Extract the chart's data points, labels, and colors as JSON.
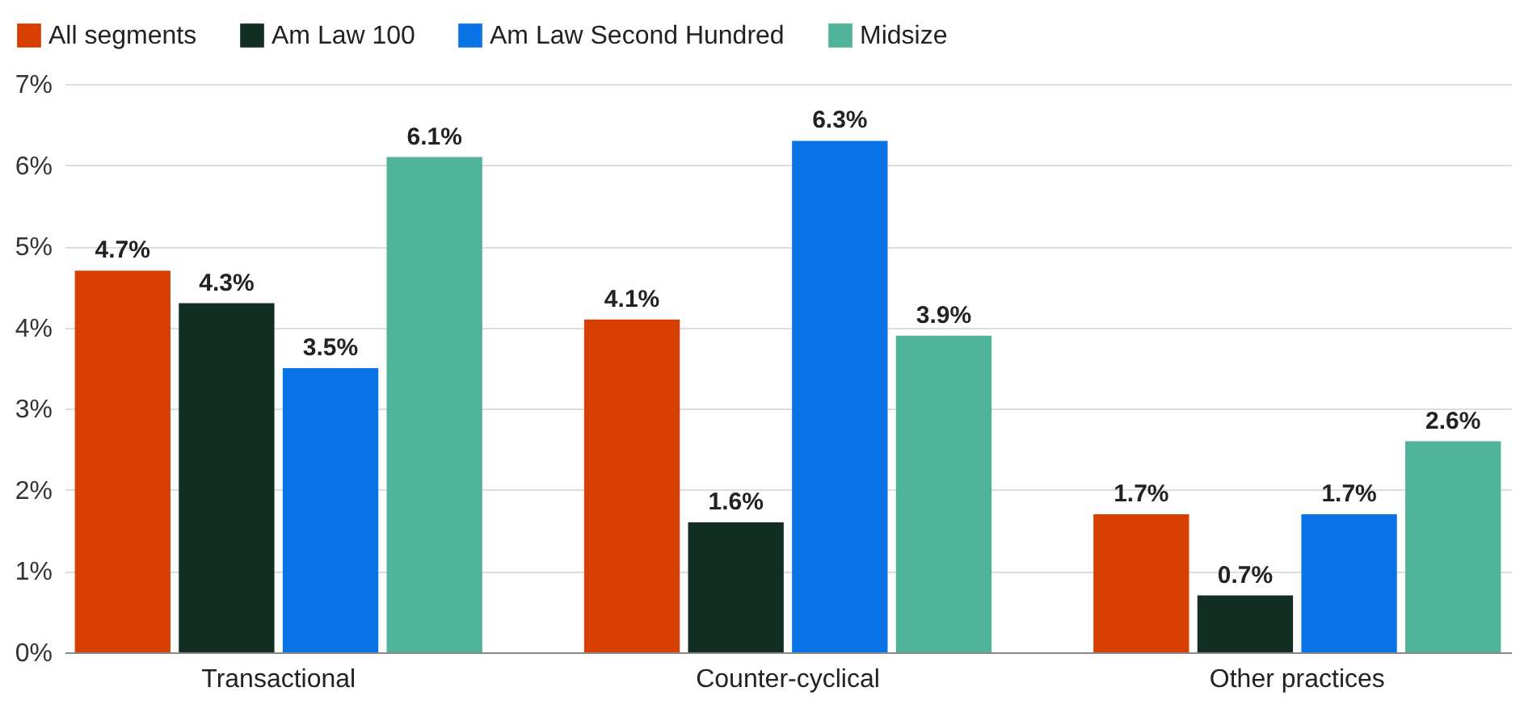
{
  "chart_data": {
    "type": "bar",
    "categories": [
      "Transactional",
      "Counter-cyclical",
      "Other practices"
    ],
    "series": [
      {
        "name": "All segments",
        "color": "#d63f00",
        "values": [
          4.7,
          4.1,
          1.7
        ],
        "value_labels": [
          "4.7%",
          "4.1%",
          "1.7%"
        ]
      },
      {
        "name": "Am Law 100",
        "color": "#132e22",
        "values": [
          4.3,
          1.6,
          0.7
        ],
        "value_labels": [
          "4.3%",
          "1.6%",
          "0.7%"
        ]
      },
      {
        "name": "Am Law Second Hundred",
        "color": "#0a73e6",
        "values": [
          3.5,
          6.3,
          1.7
        ],
        "value_labels": [
          "3.5%",
          "6.3%",
          "1.7%"
        ]
      },
      {
        "name": "Midsize",
        "color": "#4fb39a",
        "values": [
          6.1,
          3.9,
          2.6
        ],
        "value_labels": [
          "6.1%",
          "3.9%",
          "2.6%"
        ]
      }
    ],
    "ylim": [
      0,
      7
    ],
    "yticks": [
      {
        "value": 0,
        "label": "0%"
      },
      {
        "value": 1,
        "label": "1%"
      },
      {
        "value": 2,
        "label": "2%"
      },
      {
        "value": 3,
        "label": "3%"
      },
      {
        "value": 4,
        "label": "4%"
      },
      {
        "value": 5,
        "label": "5%"
      },
      {
        "value": 6,
        "label": "6%"
      },
      {
        "value": 7,
        "label": "7%"
      }
    ],
    "grid": "y",
    "legend": "top left"
  }
}
